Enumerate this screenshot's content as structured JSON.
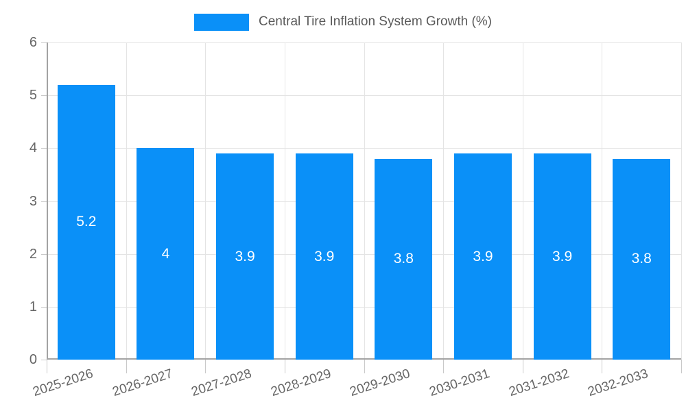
{
  "legend": {
    "label": "Central Tire Inflation System Growth (%)"
  },
  "colors": {
    "bar": "#0a90f8",
    "grid": "#e4e4e4",
    "axis": "#a3a3a3",
    "tick": "#c9c9c9",
    "tick_text": "#666666",
    "legend_text": "#595959",
    "value_label_text": "#ffffff"
  },
  "chart_data": {
    "type": "bar",
    "title": "Central Tire Inflation System Growth (%)",
    "categories": [
      "2025-2026",
      "2026-2027",
      "2027-2028",
      "2028-2029",
      "2029-2030",
      "2030-2031",
      "2031-2032",
      "2032-2033"
    ],
    "values": [
      5.2,
      4,
      3.9,
      3.9,
      3.8,
      3.9,
      3.9,
      3.8
    ],
    "value_labels": [
      "5.2",
      "4",
      "3.9",
      "3.9",
      "3.8",
      "3.9",
      "3.9",
      "3.8"
    ],
    "xlabel": "",
    "ylabel": "",
    "ylim": [
      0,
      6
    ],
    "yticks": [
      0,
      1,
      2,
      3,
      4,
      5,
      6
    ],
    "grid": true,
    "legend_position": "top",
    "x_label_rotation_deg": -18,
    "bar_color": "#0a90f8"
  }
}
